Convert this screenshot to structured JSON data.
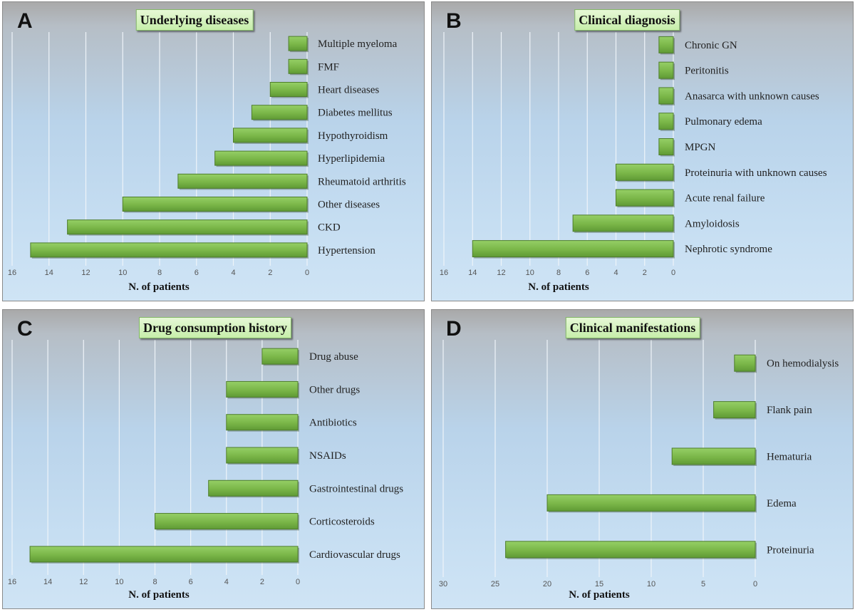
{
  "chart_data": [
    {
      "panel": "A",
      "type": "bar",
      "title": "Underlying diseases",
      "xlabel": "N. of patients",
      "xlim": [
        0,
        16
      ],
      "ticks": [
        16,
        14,
        12,
        10,
        8,
        6,
        4,
        2,
        0
      ],
      "categories": [
        "Multiple myeloma",
        "FMF",
        "Heart diseases",
        "Diabetes mellitus",
        "Hypothyroidism",
        "Hyperlipidemia",
        "Rheumatoid arthritis",
        "Other diseases",
        "CKD",
        "Hypertension"
      ],
      "values": [
        1,
        1,
        2,
        3,
        4,
        5,
        7,
        10,
        13,
        15
      ],
      "orientation": "horizontal",
      "axis_direction": "reversed",
      "bar_color": "#7ab648"
    },
    {
      "panel": "B",
      "type": "bar",
      "title": "Clinical diagnosis",
      "xlabel": "N. of patients",
      "xlim": [
        0,
        16
      ],
      "ticks": [
        16,
        14,
        12,
        10,
        8,
        6,
        4,
        2,
        0
      ],
      "categories": [
        "Chronic GN",
        "Peritonitis",
        "Anasarca with unknown causes",
        "Pulmonary edema",
        "MPGN",
        "Proteinuria with unknown causes",
        "Acute renal failure",
        "Amyloidosis",
        "Nephrotic syndrome"
      ],
      "values": [
        1,
        1,
        1,
        1,
        1,
        4,
        4,
        7,
        14
      ],
      "orientation": "horizontal",
      "axis_direction": "reversed",
      "bar_color": "#7ab648"
    },
    {
      "panel": "C",
      "type": "bar",
      "title": "Drug consumption history",
      "xlabel": "N. of patients",
      "xlim": [
        0,
        16
      ],
      "ticks": [
        16,
        14,
        12,
        10,
        8,
        6,
        4,
        2,
        0
      ],
      "categories": [
        "Drug abuse",
        "Other drugs",
        "Antibiotics",
        "NSAIDs",
        "Gastrointestinal drugs",
        "Corticosteroids",
        "Cardiovascular drugs"
      ],
      "values": [
        2,
        4,
        4,
        4,
        5,
        8,
        15
      ],
      "orientation": "horizontal",
      "axis_direction": "reversed",
      "bar_color": "#7ab648"
    },
    {
      "panel": "D",
      "type": "bar",
      "title": "Clinical manifestations",
      "xlabel": "N. of patients",
      "xlim": [
        0,
        30
      ],
      "ticks": [
        30,
        25,
        20,
        15,
        10,
        5,
        0
      ],
      "categories": [
        "On hemodialysis",
        "Flank pain",
        "Hematuria",
        "Edema",
        "Proteinuria"
      ],
      "values": [
        2,
        4,
        8,
        20,
        24
      ],
      "orientation": "horizontal",
      "axis_direction": "reversed",
      "bar_color": "#7ab648"
    }
  ]
}
